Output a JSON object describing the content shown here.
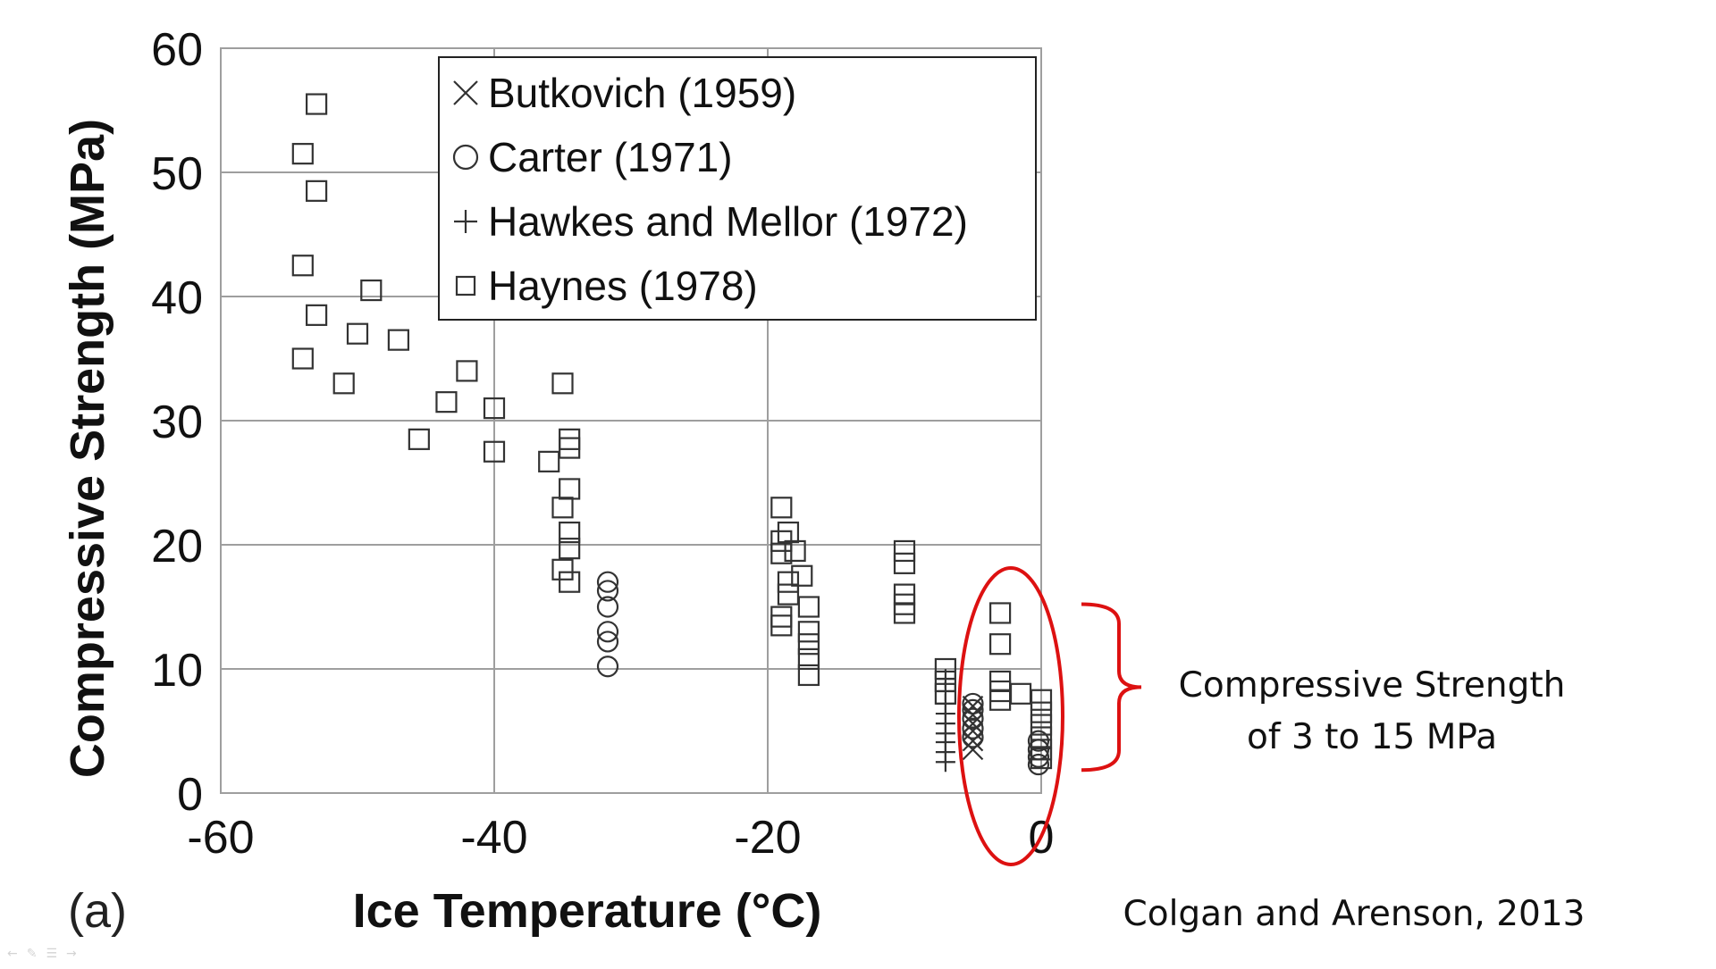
{
  "chart_data": {
    "type": "scatter",
    "panel_label": "(a)",
    "xlabel": "Ice Temperature (°C)",
    "ylabel": "Compressive Strength (MPa)",
    "xlim": [
      -60,
      0
    ],
    "ylim": [
      0,
      60
    ],
    "xticks": [
      -60,
      -40,
      -20,
      0
    ],
    "yticks": [
      0,
      10,
      20,
      30,
      40,
      50,
      60
    ],
    "grid": true,
    "legend_position": "top-right",
    "series": [
      {
        "name": "Butkovich (1959)",
        "marker": "x",
        "points": [
          [
            -5,
            3.5
          ],
          [
            -5,
            4.2
          ],
          [
            -5,
            5.0
          ],
          [
            -5,
            5.6
          ],
          [
            -5,
            6.3
          ],
          [
            -5,
            7.0
          ]
        ]
      },
      {
        "name": "Carter (1971)",
        "marker": "circle",
        "points": [
          [
            -31.7,
            10.2
          ],
          [
            -31.7,
            12.2
          ],
          [
            -31.7,
            13.0
          ],
          [
            -31.7,
            15.0
          ],
          [
            -31.7,
            16.3
          ],
          [
            -31.7,
            17.0
          ],
          [
            -5,
            4.5
          ],
          [
            -5,
            5.2
          ],
          [
            -5,
            6.0
          ],
          [
            -5,
            6.7
          ],
          [
            -5,
            7.2
          ],
          [
            -0.2,
            2.3
          ],
          [
            -0.2,
            2.9
          ],
          [
            -0.2,
            3.5
          ],
          [
            -0.2,
            4.2
          ]
        ]
      },
      {
        "name": "Hawkes and Mellor (1972)",
        "marker": "plus",
        "points": [
          [
            -7,
            2.5
          ],
          [
            -7,
            3.3
          ],
          [
            -7,
            4.1
          ],
          [
            -7,
            4.8
          ],
          [
            -7,
            5.6
          ],
          [
            -7,
            6.4
          ],
          [
            -7,
            7.2
          ],
          [
            -7,
            8.2
          ],
          [
            -7,
            9.2
          ]
        ]
      },
      {
        "name": "Haynes (1978)",
        "marker": "square",
        "points": [
          [
            -53,
            55.5
          ],
          [
            -54,
            51.5
          ],
          [
            -53,
            48.5
          ],
          [
            -54,
            42.5
          ],
          [
            -49,
            40.5
          ],
          [
            -53,
            38.5
          ],
          [
            -50,
            37
          ],
          [
            -47,
            36.5
          ],
          [
            -54,
            35
          ],
          [
            -42,
            34
          ],
          [
            -51,
            33
          ],
          [
            -43.5,
            31.5
          ],
          [
            -40,
            31
          ],
          [
            -45.5,
            28.5
          ],
          [
            -40,
            27.5
          ],
          [
            -35,
            33
          ],
          [
            -34.5,
            28.5
          ],
          [
            -34.5,
            27.8
          ],
          [
            -36,
            26.7
          ],
          [
            -34.5,
            24.5
          ],
          [
            -35,
            23
          ],
          [
            -34.5,
            21
          ],
          [
            -34.5,
            19.7
          ],
          [
            -35,
            18
          ],
          [
            -34.5,
            17
          ],
          [
            -19,
            23
          ],
          [
            -18.5,
            21
          ],
          [
            -19,
            20.3
          ],
          [
            -19,
            19.3
          ],
          [
            -18,
            19.5
          ],
          [
            -18.5,
            17
          ],
          [
            -17.5,
            17.5
          ],
          [
            -18.5,
            16
          ],
          [
            -17,
            15
          ],
          [
            -19,
            14.2
          ],
          [
            -19,
            13.5
          ],
          [
            -17,
            13
          ],
          [
            -17,
            12
          ],
          [
            -17,
            10.8
          ],
          [
            -17,
            9.5
          ],
          [
            -10,
            19.5
          ],
          [
            -10,
            18.5
          ],
          [
            -10,
            16
          ],
          [
            -10,
            15.2
          ],
          [
            -10,
            14.5
          ],
          [
            -7,
            10
          ],
          [
            -7,
            9
          ],
          [
            -7,
            8
          ],
          [
            -3,
            14.5
          ],
          [
            -3,
            12
          ],
          [
            -3,
            9
          ],
          [
            -3,
            8.2
          ],
          [
            -3,
            7.5
          ],
          [
            -1.5,
            8
          ],
          [
            0,
            7.5
          ],
          [
            0,
            6.5
          ],
          [
            0,
            5.5
          ],
          [
            0,
            4.5
          ],
          [
            0,
            3.5
          ],
          [
            0,
            2.8
          ]
        ]
      }
    ],
    "annotation": {
      "text_line1": "Compressive Strength",
      "text_line2": "of 3 to 15 MPa",
      "range": [
        3,
        15
      ],
      "ellipse_color": "#dd1111",
      "brace_color": "#dd1111"
    }
  },
  "citation": "Colgan and Arenson, 2013",
  "slide_nav": {
    "prev_icon": "←",
    "pen_icon": "✎",
    "menu_icon": "☰",
    "next_icon": "→"
  }
}
